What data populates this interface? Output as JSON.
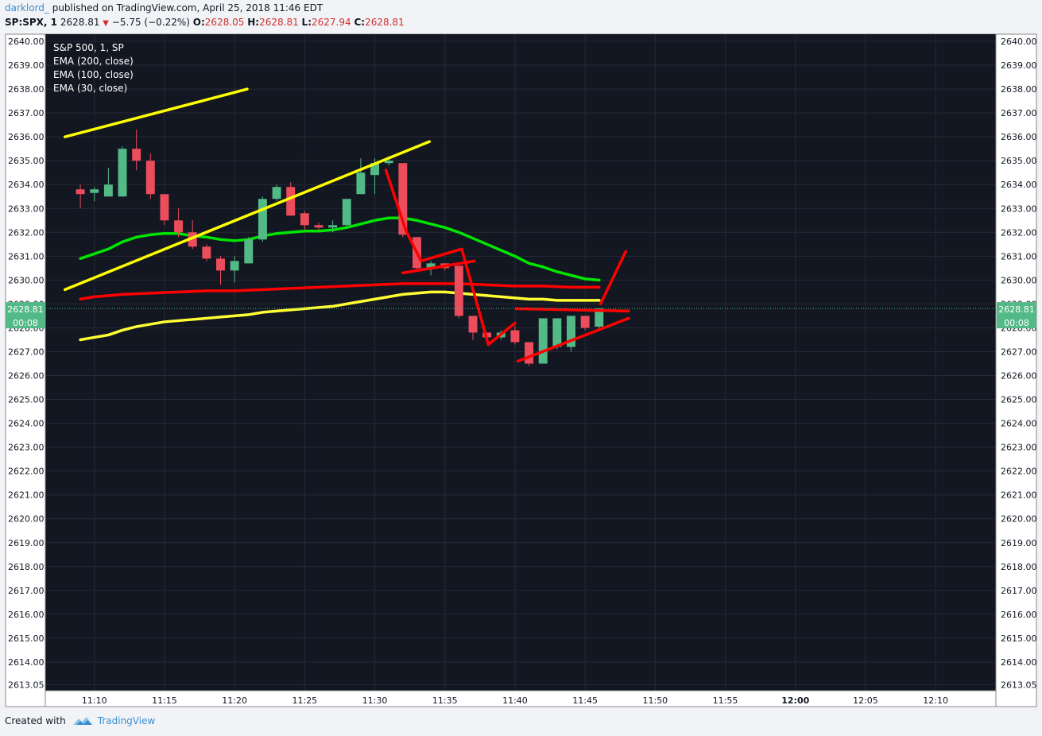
{
  "header": {
    "author": "darklord_",
    "published_text": "published on TradingView.com, April 25, 2018 11:46 EDT",
    "symbol": "SP:SPX, 1",
    "last": "2628.81",
    "change": "−5.75 (−0.22%)",
    "open_label": "O:",
    "open": "2628.05",
    "high_label": "H:",
    "high": "2628.81",
    "low_label": "L:",
    "low": "2627.94",
    "close_label": "C:",
    "close": "2628.81"
  },
  "legend": {
    "title": "S&P 500, 1, SP",
    "items": [
      "EMA (200, close)",
      "EMA (100, close)",
      "EMA (30, close)"
    ]
  },
  "footer": {
    "created_with": "Created with",
    "brand": "TradingView"
  },
  "price_badge": {
    "value": "2628.81",
    "countdown": "00:08"
  },
  "colors": {
    "up": "#53b987",
    "down": "#eb4d5c",
    "background": "#131722",
    "ema200": "#ff0000",
    "ema100": "#ffff33",
    "ema30": "#00e600",
    "annotation_yellow": "#ffff00",
    "annotation_red": "#ff0000"
  },
  "chart_data": {
    "type": "candlestick",
    "y_ticks": [
      "2640.00",
      "2639.00",
      "2638.00",
      "2637.00",
      "2636.00",
      "2635.00",
      "2634.00",
      "2633.00",
      "2632.00",
      "2631.00",
      "2630.00",
      "2629.00",
      "2628.00",
      "2627.00",
      "2626.00",
      "2625.00",
      "2624.00",
      "2623.00",
      "2622.00",
      "2621.00",
      "2620.00",
      "2619.00",
      "2618.00",
      "2617.00",
      "2616.00",
      "2615.00",
      "2614.00",
      "2613.05"
    ],
    "x_ticks": [
      {
        "label": "11:10",
        "minute": 10
      },
      {
        "label": "11:15",
        "minute": 15
      },
      {
        "label": "11:20",
        "minute": 20
      },
      {
        "label": "11:25",
        "minute": 25
      },
      {
        "label": "11:30",
        "minute": 30
      },
      {
        "label": "11:35",
        "minute": 35
      },
      {
        "label": "11:40",
        "minute": 40
      },
      {
        "label": "11:45",
        "minute": 45
      },
      {
        "label": "11:50",
        "minute": 50
      },
      {
        "label": "11:55",
        "minute": 55
      },
      {
        "label": "12:00",
        "minute": 60,
        "bold": true
      },
      {
        "label": "12:05",
        "minute": 65
      },
      {
        "label": "12:10",
        "minute": 70
      }
    ],
    "ylim": [
      2612.8,
      2640.3
    ],
    "xlim_minutes": [
      6.5,
      74.3
    ],
    "candles": [
      {
        "t": 9,
        "o": 2633.8,
        "h": 2634.0,
        "l": 2633.0,
        "c": 2633.6
      },
      {
        "t": 10,
        "o": 2633.65,
        "h": 2633.9,
        "l": 2633.3,
        "c": 2633.8
      },
      {
        "t": 11,
        "o": 2633.5,
        "h": 2634.7,
        "l": 2633.5,
        "c": 2634.0
      },
      {
        "t": 12,
        "o": 2633.5,
        "h": 2635.6,
        "l": 2633.5,
        "c": 2635.5
      },
      {
        "t": 13,
        "o": 2635.5,
        "h": 2636.3,
        "l": 2634.6,
        "c": 2635.0
      },
      {
        "t": 14,
        "o": 2635.0,
        "h": 2635.3,
        "l": 2633.4,
        "c": 2633.6
      },
      {
        "t": 15,
        "o": 2633.6,
        "h": 2633.6,
        "l": 2632.3,
        "c": 2632.5
      },
      {
        "t": 16,
        "o": 2632.5,
        "h": 2633.0,
        "l": 2631.8,
        "c": 2632.0
      },
      {
        "t": 17,
        "o": 2632.0,
        "h": 2632.5,
        "l": 2631.3,
        "c": 2631.4
      },
      {
        "t": 18,
        "o": 2631.4,
        "h": 2631.5,
        "l": 2630.8,
        "c": 2630.9
      },
      {
        "t": 19,
        "o": 2630.9,
        "h": 2631.0,
        "l": 2629.8,
        "c": 2630.4
      },
      {
        "t": 20,
        "o": 2630.4,
        "h": 2631.0,
        "l": 2629.9,
        "c": 2630.8
      },
      {
        "t": 21,
        "o": 2630.7,
        "h": 2631.8,
        "l": 2630.7,
        "c": 2631.7
      },
      {
        "t": 22,
        "o": 2631.7,
        "h": 2633.5,
        "l": 2631.6,
        "c": 2633.4
      },
      {
        "t": 23,
        "o": 2633.4,
        "h": 2634.0,
        "l": 2633.3,
        "c": 2633.9
      },
      {
        "t": 24,
        "o": 2633.9,
        "h": 2634.1,
        "l": 2632.7,
        "c": 2632.7
      },
      {
        "t": 25,
        "o": 2632.8,
        "h": 2632.9,
        "l": 2632.1,
        "c": 2632.3
      },
      {
        "t": 26,
        "o": 2632.3,
        "h": 2632.4,
        "l": 2632.1,
        "c": 2632.2
      },
      {
        "t": 27,
        "o": 2632.2,
        "h": 2632.5,
        "l": 2632.0,
        "c": 2632.3
      },
      {
        "t": 28,
        "o": 2632.3,
        "h": 2633.4,
        "l": 2632.2,
        "c": 2633.4
      },
      {
        "t": 29,
        "o": 2633.6,
        "h": 2635.1,
        "l": 2633.6,
        "c": 2634.5
      },
      {
        "t": 30,
        "o": 2634.4,
        "h": 2635.1,
        "l": 2633.6,
        "c": 2634.9
      },
      {
        "t": 31,
        "o": 2634.9,
        "h": 2635.2,
        "l": 2634.8,
        "c": 2635.0
      },
      {
        "t": 32,
        "o": 2634.9,
        "h": 2634.9,
        "l": 2631.8,
        "c": 2631.9
      },
      {
        "t": 33,
        "o": 2631.8,
        "h": 2631.8,
        "l": 2630.4,
        "c": 2630.5
      },
      {
        "t": 34,
        "o": 2630.5,
        "h": 2630.8,
        "l": 2630.2,
        "c": 2630.7
      },
      {
        "t": 35,
        "o": 2630.7,
        "h": 2630.7,
        "l": 2630.4,
        "c": 2630.5
      },
      {
        "t": 36,
        "o": 2630.6,
        "h": 2630.6,
        "l": 2628.4,
        "c": 2628.5
      },
      {
        "t": 37,
        "o": 2628.5,
        "h": 2628.5,
        "l": 2627.5,
        "c": 2627.8
      },
      {
        "t": 38,
        "o": 2627.8,
        "h": 2627.8,
        "l": 2627.5,
        "c": 2627.6
      },
      {
        "t": 39,
        "o": 2627.6,
        "h": 2627.9,
        "l": 2627.5,
        "c": 2627.8
      },
      {
        "t": 40,
        "o": 2627.9,
        "h": 2628.1,
        "l": 2627.3,
        "c": 2627.4
      },
      {
        "t": 41,
        "o": 2627.4,
        "h": 2627.4,
        "l": 2626.4,
        "c": 2626.5
      },
      {
        "t": 42,
        "o": 2626.5,
        "h": 2628.4,
        "l": 2626.5,
        "c": 2628.4
      },
      {
        "t": 43,
        "o": 2627.2,
        "h": 2628.4,
        "l": 2627.1,
        "c": 2628.4
      },
      {
        "t": 44,
        "o": 2627.2,
        "h": 2628.5,
        "l": 2627.0,
        "c": 2628.5
      },
      {
        "t": 45,
        "o": 2628.5,
        "h": 2628.5,
        "l": 2627.9,
        "c": 2628.0
      },
      {
        "t": 46,
        "o": 2628.05,
        "h": 2628.81,
        "l": 2627.94,
        "c": 2628.81
      }
    ],
    "ema200": [
      [
        9,
        2629.2
      ],
      [
        10,
        2629.3
      ],
      [
        12,
        2629.4
      ],
      [
        14,
        2629.45
      ],
      [
        16,
        2629.5
      ],
      [
        18,
        2629.55
      ],
      [
        20,
        2629.55
      ],
      [
        22,
        2629.6
      ],
      [
        24,
        2629.65
      ],
      [
        26,
        2629.7
      ],
      [
        28,
        2629.75
      ],
      [
        30,
        2629.8
      ],
      [
        32,
        2629.85
      ],
      [
        34,
        2629.85
      ],
      [
        36,
        2629.85
      ],
      [
        38,
        2629.8
      ],
      [
        40,
        2629.75
      ],
      [
        42,
        2629.75
      ],
      [
        44,
        2629.7
      ],
      [
        46,
        2629.7
      ]
    ],
    "ema100": [
      [
        9,
        2627.5
      ],
      [
        10,
        2627.6
      ],
      [
        11,
        2627.7
      ],
      [
        12,
        2627.9
      ],
      [
        13,
        2628.05
      ],
      [
        14,
        2628.15
      ],
      [
        15,
        2628.25
      ],
      [
        16,
        2628.3
      ],
      [
        17,
        2628.35
      ],
      [
        18,
        2628.4
      ],
      [
        19,
        2628.45
      ],
      [
        20,
        2628.5
      ],
      [
        21,
        2628.55
      ],
      [
        22,
        2628.65
      ],
      [
        23,
        2628.7
      ],
      [
        24,
        2628.75
      ],
      [
        25,
        2628.8
      ],
      [
        26,
        2628.85
      ],
      [
        27,
        2628.9
      ],
      [
        28,
        2629.0
      ],
      [
        29,
        2629.1
      ],
      [
        30,
        2629.2
      ],
      [
        31,
        2629.3
      ],
      [
        32,
        2629.4
      ],
      [
        33,
        2629.45
      ],
      [
        34,
        2629.5
      ],
      [
        35,
        2629.5
      ],
      [
        36,
        2629.45
      ],
      [
        37,
        2629.4
      ],
      [
        38,
        2629.35
      ],
      [
        39,
        2629.3
      ],
      [
        40,
        2629.25
      ],
      [
        41,
        2629.2
      ],
      [
        42,
        2629.2
      ],
      [
        43,
        2629.15
      ],
      [
        44,
        2629.15
      ],
      [
        45,
        2629.15
      ],
      [
        46,
        2629.15
      ]
    ],
    "ema30": [
      [
        9,
        2630.9
      ],
      [
        10,
        2631.1
      ],
      [
        11,
        2631.3
      ],
      [
        12,
        2631.6
      ],
      [
        13,
        2631.8
      ],
      [
        14,
        2631.9
      ],
      [
        15,
        2631.95
      ],
      [
        16,
        2631.95
      ],
      [
        17,
        2631.85
      ],
      [
        18,
        2631.8
      ],
      [
        19,
        2631.7
      ],
      [
        20,
        2631.65
      ],
      [
        21,
        2631.7
      ],
      [
        22,
        2631.85
      ],
      [
        23,
        2631.95
      ],
      [
        24,
        2632.0
      ],
      [
        25,
        2632.05
      ],
      [
        26,
        2632.05
      ],
      [
        27,
        2632.1
      ],
      [
        28,
        2632.2
      ],
      [
        29,
        2632.35
      ],
      [
        30,
        2632.5
      ],
      [
        31,
        2632.6
      ],
      [
        32,
        2632.6
      ],
      [
        33,
        2632.5
      ],
      [
        34,
        2632.35
      ],
      [
        35,
        2632.2
      ],
      [
        36,
        2632.0
      ],
      [
        37,
        2631.75
      ],
      [
        38,
        2631.5
      ],
      [
        39,
        2631.25
      ],
      [
        40,
        2631.0
      ],
      [
        41,
        2630.7
      ],
      [
        42,
        2630.55
      ],
      [
        43,
        2630.35
      ],
      [
        44,
        2630.2
      ],
      [
        45,
        2630.05
      ],
      [
        46,
        2630.0
      ]
    ],
    "annotations": [
      {
        "color": "yellow",
        "points": [
          [
            7.9,
            2636.0
          ],
          [
            20.9,
            2638.0
          ]
        ]
      },
      {
        "color": "yellow",
        "points": [
          [
            7.9,
            2629.6
          ],
          [
            33.9,
            2635.8
          ]
        ]
      },
      {
        "color": "red",
        "points": [
          [
            30.8,
            2634.6
          ],
          [
            32.2,
            2632.1
          ],
          [
            33.3,
            2630.8
          ],
          [
            36.2,
            2631.3
          ],
          [
            38.1,
            2627.3
          ],
          [
            40.0,
            2628.2
          ]
        ]
      },
      {
        "color": "red",
        "points": [
          [
            32.0,
            2630.3
          ],
          [
            37.1,
            2630.8
          ]
        ]
      },
      {
        "color": "red",
        "points": [
          [
            40.2,
            2626.6
          ],
          [
            48.1,
            2628.4
          ]
        ]
      },
      {
        "color": "red",
        "points": [
          [
            40.1,
            2628.8
          ],
          [
            48.1,
            2628.7
          ]
        ]
      },
      {
        "color": "red",
        "points": [
          [
            46.1,
            2629.0
          ],
          [
            47.9,
            2631.2
          ]
        ]
      }
    ]
  }
}
